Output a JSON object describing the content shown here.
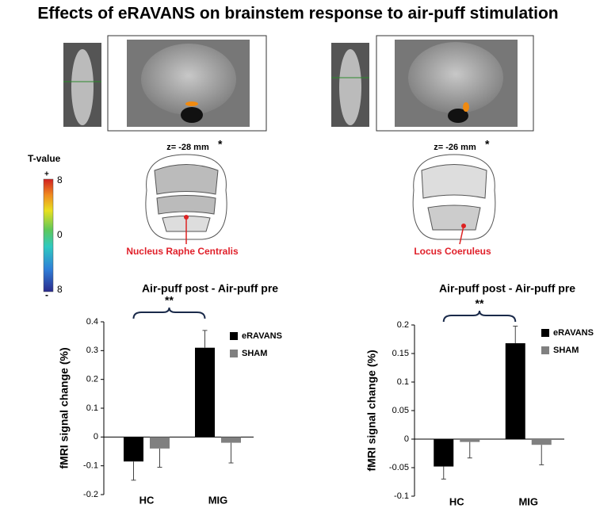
{
  "title": "Effects of eRAVANS on brainstem response to air-puff stimulation",
  "panels": [
    {
      "slice_label": "z= -28 mm",
      "marker": "*",
      "region": "Nucleus Raphe Centralis"
    },
    {
      "slice_label": "z= -26 mm",
      "marker": "*",
      "region": "Locus Coeruleus"
    }
  ],
  "colorbar": {
    "label": "T-value",
    "plus": "+",
    "top": "8",
    "middle": "0",
    "bottom": "8",
    "minus": "-"
  },
  "chart_data": [
    {
      "type": "bar",
      "title": "Air-puff post - Air-puff pre",
      "ylabel": "fMRI signal change (%)",
      "categories": [
        "HC",
        "MIG"
      ],
      "series": [
        {
          "name": "eRAVANS",
          "color": "#000000",
          "values": [
            -0.085,
            0.31
          ],
          "errors": [
            0.065,
            0.06
          ]
        },
        {
          "name": "SHAM",
          "color": "#808080",
          "values": [
            -0.04,
            -0.02
          ],
          "errors": [
            0.065,
            0.07
          ]
        }
      ],
      "ylim": [
        -0.2,
        0.4
      ],
      "yticks": [
        -0.2,
        -0.1,
        0,
        0.1,
        0.2,
        0.3,
        0.4
      ],
      "annotation": "**",
      "legend": "upper right"
    },
    {
      "type": "bar",
      "title": "Air-puff post - Air-puff pre",
      "ylabel": "fMRI signal change (%)",
      "categories": [
        "HC",
        "MIG"
      ],
      "series": [
        {
          "name": "eRAVANS",
          "color": "#000000",
          "values": [
            -0.048,
            0.168
          ],
          "errors": [
            0.022,
            0.03
          ]
        },
        {
          "name": "SHAM",
          "color": "#808080",
          "values": [
            -0.005,
            -0.01
          ],
          "errors": [
            0.028,
            0.035
          ]
        }
      ],
      "ylim": [
        -0.1,
        0.2
      ],
      "yticks": [
        -0.1,
        -0.05,
        0,
        0.05,
        0.1,
        0.15,
        0.2
      ],
      "annotation": "**",
      "legend": "upper right"
    }
  ]
}
